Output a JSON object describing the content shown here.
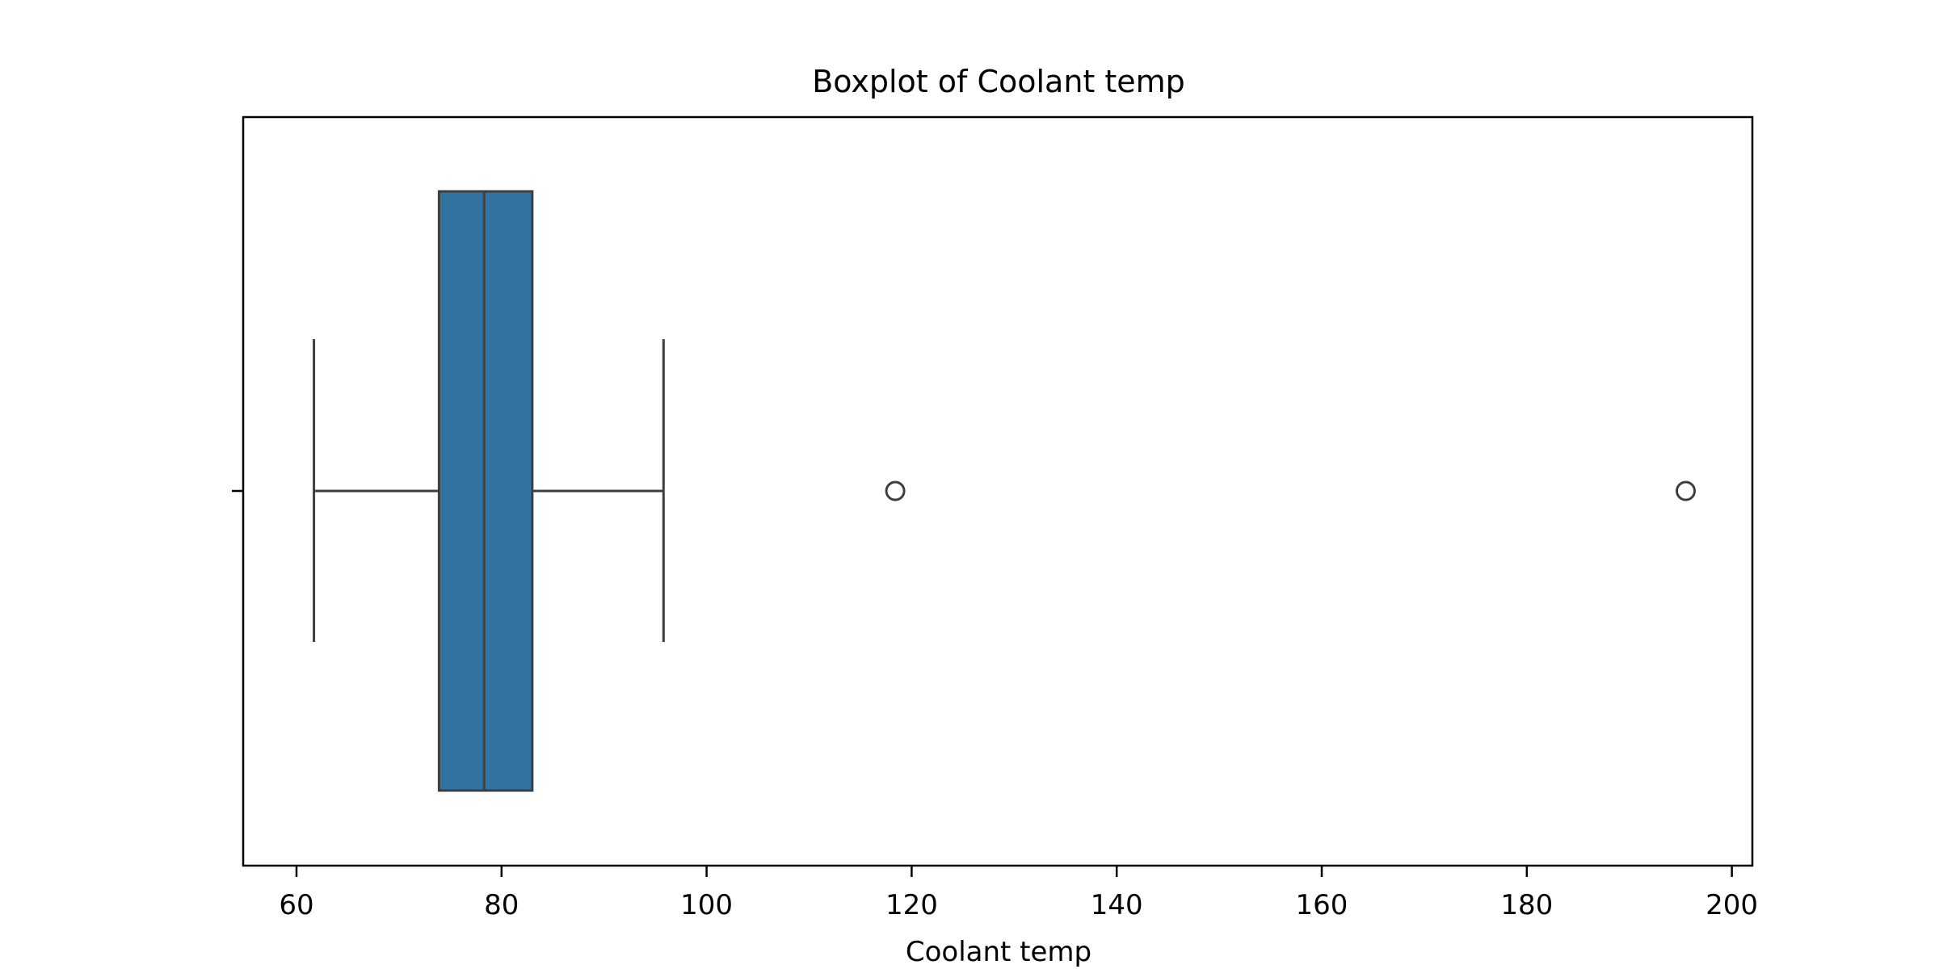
{
  "chart_data": {
    "type": "boxplot",
    "title": "Boxplot of Coolant temp",
    "xlabel": "Coolant temp",
    "ylabel": "",
    "orientation": "horizontal",
    "xlim": [
      54.8,
      202.0
    ],
    "xticks": [
      60,
      80,
      100,
      120,
      140,
      160,
      180,
      200
    ],
    "xtick_labels": [
      "60",
      "80",
      "100",
      "120",
      "140",
      "160",
      "180",
      "200"
    ],
    "grid": false,
    "legend": "none",
    "box": {
      "whisker_low": 61.7,
      "q1": 73.9,
      "median": 78.3,
      "q3": 83.0,
      "whisker_high": 95.8
    },
    "outliers": [
      118.4,
      195.5
    ],
    "colors": {
      "box_fill": "#3274a1",
      "line": "#3f3f3f",
      "axes": "#000000"
    }
  }
}
